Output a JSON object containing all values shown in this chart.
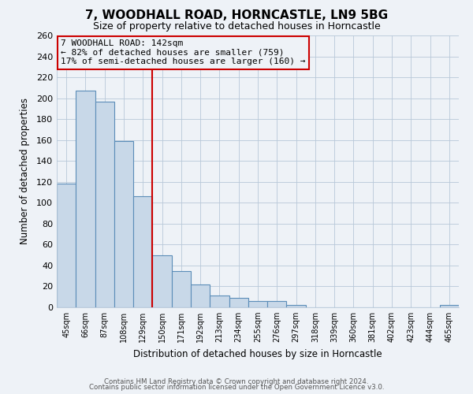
{
  "title": "7, WOODHALL ROAD, HORNCASTLE, LN9 5BG",
  "subtitle": "Size of property relative to detached houses in Horncastle",
  "xlabel": "Distribution of detached houses by size in Horncastle",
  "ylabel": "Number of detached properties",
  "bar_values": [
    118,
    207,
    197,
    159,
    106,
    50,
    35,
    22,
    11,
    9,
    6,
    6,
    2,
    0,
    0,
    0,
    0,
    0,
    0,
    0,
    2
  ],
  "all_labels": [
    "45sqm",
    "66sqm",
    "87sqm",
    "108sqm",
    "129sqm",
    "150sqm",
    "171sqm",
    "192sqm",
    "213sqm",
    "234sqm",
    "255sqm",
    "276sqm",
    "297sqm",
    "318sqm",
    "339sqm",
    "360sqm",
    "381sqm",
    "402sqm",
    "423sqm",
    "444sqm",
    "465sqm"
  ],
  "bar_color": "#c8d8e8",
  "bar_edge_color": "#5b8db8",
  "annotation_title": "7 WOODHALL ROAD: 142sqm",
  "annotation_line1": "← 82% of detached houses are smaller (759)",
  "annotation_line2": "17% of semi-detached houses are larger (160) →",
  "ylim": [
    0,
    260
  ],
  "yticks": [
    0,
    20,
    40,
    60,
    80,
    100,
    120,
    140,
    160,
    180,
    200,
    220,
    240,
    260
  ],
  "footer1": "Contains HM Land Registry data © Crown copyright and database right 2024.",
  "footer2": "Contains public sector information licensed under the Open Government Licence v3.0.",
  "background_color": "#eef2f7",
  "grid_color": "#b8c8d8"
}
